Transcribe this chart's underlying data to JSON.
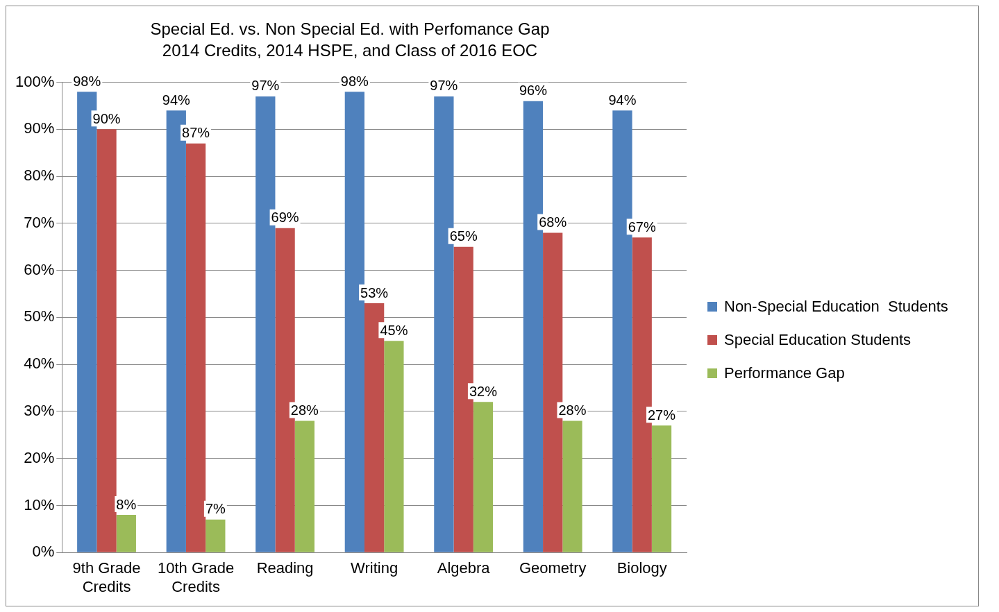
{
  "chart_data": {
    "type": "bar",
    "title": "Special Ed. vs. Non Special Ed. with Perfomance Gap",
    "subtitle": "2014 Credits, 2014 HSPE, and Class of 2016 EOC",
    "categories": [
      "9th Grade Credits",
      "10th Grade Credits",
      "Reading",
      "Writing",
      "Algebra",
      "Geometry",
      "Biology"
    ],
    "series": [
      {
        "name": "Non-Special Education  Students",
        "color": "#4f81bd",
        "values": [
          98,
          94,
          97,
          98,
          97,
          96,
          94
        ],
        "value_labels": [
          "98%",
          "94%",
          "97%",
          "98%",
          "97%",
          "96%",
          "94%"
        ]
      },
      {
        "name": "Special Education Students",
        "color": "#c0504d",
        "values": [
          90,
          87,
          69,
          53,
          65,
          68,
          67
        ],
        "value_labels": [
          "90%",
          "87%",
          "69%",
          "53%",
          "65%",
          "68%",
          "67%"
        ]
      },
      {
        "name": "Performance Gap",
        "color": "#9bbb59",
        "values": [
          8,
          7,
          28,
          45,
          32,
          28,
          27
        ],
        "value_labels": [
          "8%",
          "7%",
          "28%",
          "45%",
          "32%",
          "28%",
          "27%"
        ]
      }
    ],
    "ylim": [
      0,
      100
    ],
    "yticks": [
      {
        "value": 0,
        "label": "0%"
      },
      {
        "value": 10,
        "label": "10%"
      },
      {
        "value": 20,
        "label": "20%"
      },
      {
        "value": 30,
        "label": "30%"
      },
      {
        "value": 40,
        "label": "40%"
      },
      {
        "value": 50,
        "label": "50%"
      },
      {
        "value": 60,
        "label": "60%"
      },
      {
        "value": 70,
        "label": "70%"
      },
      {
        "value": 80,
        "label": "80%"
      },
      {
        "value": 90,
        "label": "90%"
      },
      {
        "value": 100,
        "label": "100%"
      }
    ],
    "grid": "y",
    "legend": "right"
  }
}
